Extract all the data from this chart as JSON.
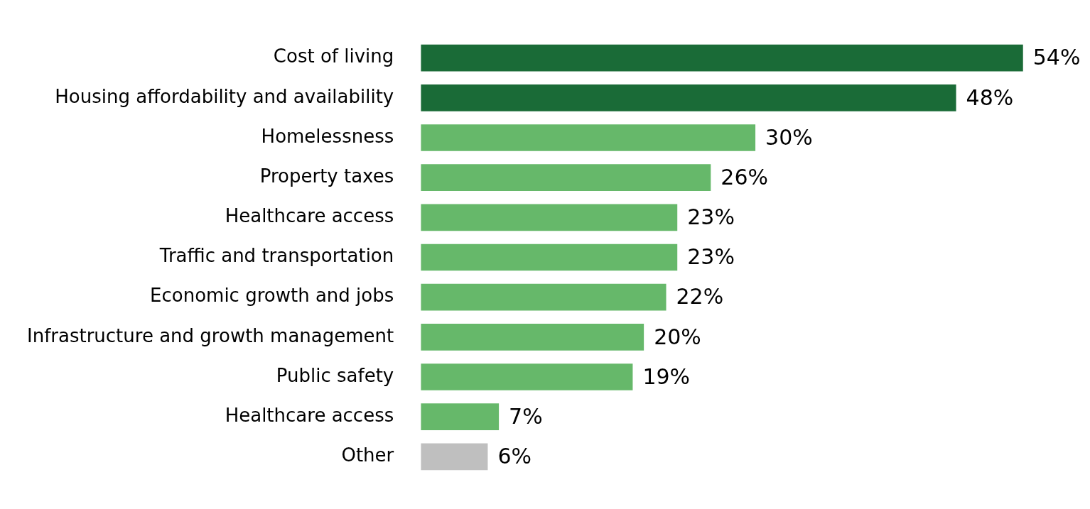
{
  "chart_data": {
    "type": "bar",
    "orientation": "horizontal",
    "categories": [
      "Cost of living",
      "Housing affordability and availability",
      "Homelessness",
      "Property taxes",
      "Healthcare access",
      "Traffic and transportation",
      "Economic growth and jobs",
      "Infrastructure and growth management",
      "Public safety",
      "Healthcare access",
      "Other"
    ],
    "values": [
      54,
      48,
      30,
      26,
      23,
      23,
      22,
      20,
      19,
      7,
      6
    ],
    "colors": [
      "#1a6b37",
      "#1a6b37",
      "#66b86a",
      "#66b86a",
      "#66b86a",
      "#66b86a",
      "#66b86a",
      "#66b86a",
      "#66b86a",
      "#66b86a",
      "#bfbfbf"
    ],
    "value_labels": [
      "54%",
      "48%",
      "30%",
      "26%",
      "23%",
      "23%",
      "22%",
      "20%",
      "19%",
      "7%",
      "6%"
    ],
    "legend": false
  }
}
